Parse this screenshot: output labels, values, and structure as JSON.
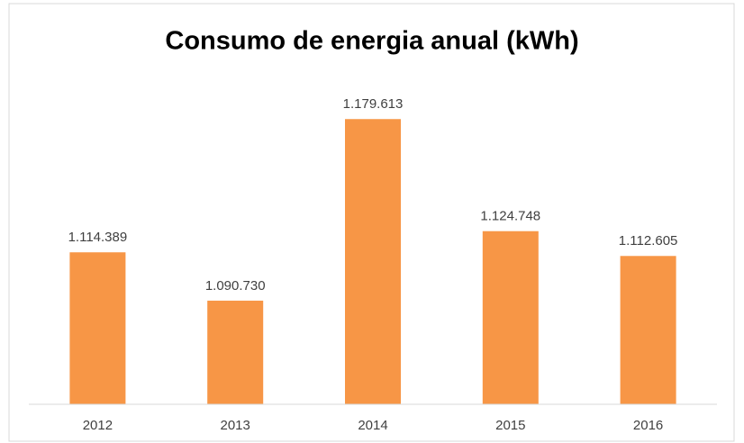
{
  "chart_data": {
    "type": "bar",
    "title": "Consumo de energia anual (kWh)",
    "categories": [
      "2012",
      "2013",
      "2014",
      "2015",
      "2016"
    ],
    "values": [
      1114389,
      1090730,
      1179613,
      1124748,
      1112605
    ],
    "value_labels": [
      "1.114.389",
      "1.090.730",
      "1.179.613",
      "1.124.748",
      "1.112.605"
    ],
    "color": "#f79646",
    "ylim": [
      1040000,
      1200000
    ]
  }
}
